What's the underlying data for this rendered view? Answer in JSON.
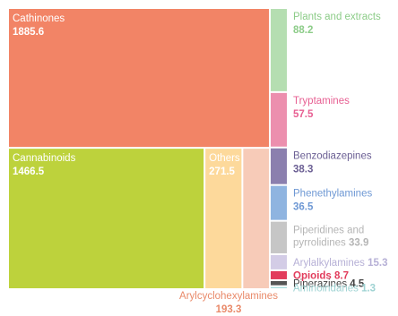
{
  "chart_data": {
    "type": "treemap",
    "title": "",
    "unit": "",
    "items": [
      {
        "name": "Cathinones",
        "value": 1885.6,
        "color": "#f28466",
        "label_color": "#ffffff",
        "label_inside": true,
        "value_inline": false
      },
      {
        "name": "Cannabinoids",
        "value": 1466.5,
        "color": "#bdd23c",
        "label_color": "#ffffff",
        "label_inside": true,
        "value_inline": false
      },
      {
        "name": "Others",
        "value": 271.5,
        "color": "#fdd99b",
        "label_color": "#ffffff",
        "label_inside": true,
        "value_inline": false
      },
      {
        "name": "Arylcyclohexylamines",
        "value": 193.3,
        "color": "#f7cbb8",
        "label_color": "#e98a6a",
        "label_inside": false,
        "value_inline": false
      },
      {
        "name": "Plants and extracts",
        "value": 88.2,
        "color": "#b5deb1",
        "label_color": "#8ccc88",
        "label_inside": false,
        "value_inline": false
      },
      {
        "name": "Tryptamines",
        "value": 57.5,
        "color": "#ec8fae",
        "label_color": "#e75f92",
        "label_inside": false,
        "value_inline": false
      },
      {
        "name": "Benzodiazepines",
        "value": 38.3,
        "color": "#8b7fae",
        "label_color": "#6b5f94",
        "label_inside": false,
        "value_inline": false
      },
      {
        "name": "Phenethylamines",
        "value": 36.5,
        "color": "#8fb4e0",
        "label_color": "#6e98d4",
        "label_inside": false,
        "value_inline": false
      },
      {
        "name": "Piperidines and pyrrolidines",
        "value": 33.9,
        "color": "#c6c6c6",
        "label_color": "#b5b5b5",
        "label_inside": false,
        "value_inline": false
      },
      {
        "name": "Arylalkylamines",
        "value": 15.3,
        "color": "#d3cce6",
        "label_color": "#b6b0d6",
        "label_inside": false,
        "value_inline": true
      },
      {
        "name": "Opioids",
        "value": 8.7,
        "color": "#e23c5c",
        "label_color": "#e23c5c",
        "label_inside": false,
        "value_inline": true
      },
      {
        "name": "Piperazines",
        "value": 4.5,
        "color": "#555555",
        "label_color": "#444444",
        "label_inside": false,
        "value_inline": true
      },
      {
        "name": "Aminoindanes",
        "value": 1.3,
        "color": "#a8dcdc",
        "label_color": "#9fd3d3",
        "label_inside": false,
        "value_inline": true
      }
    ]
  }
}
